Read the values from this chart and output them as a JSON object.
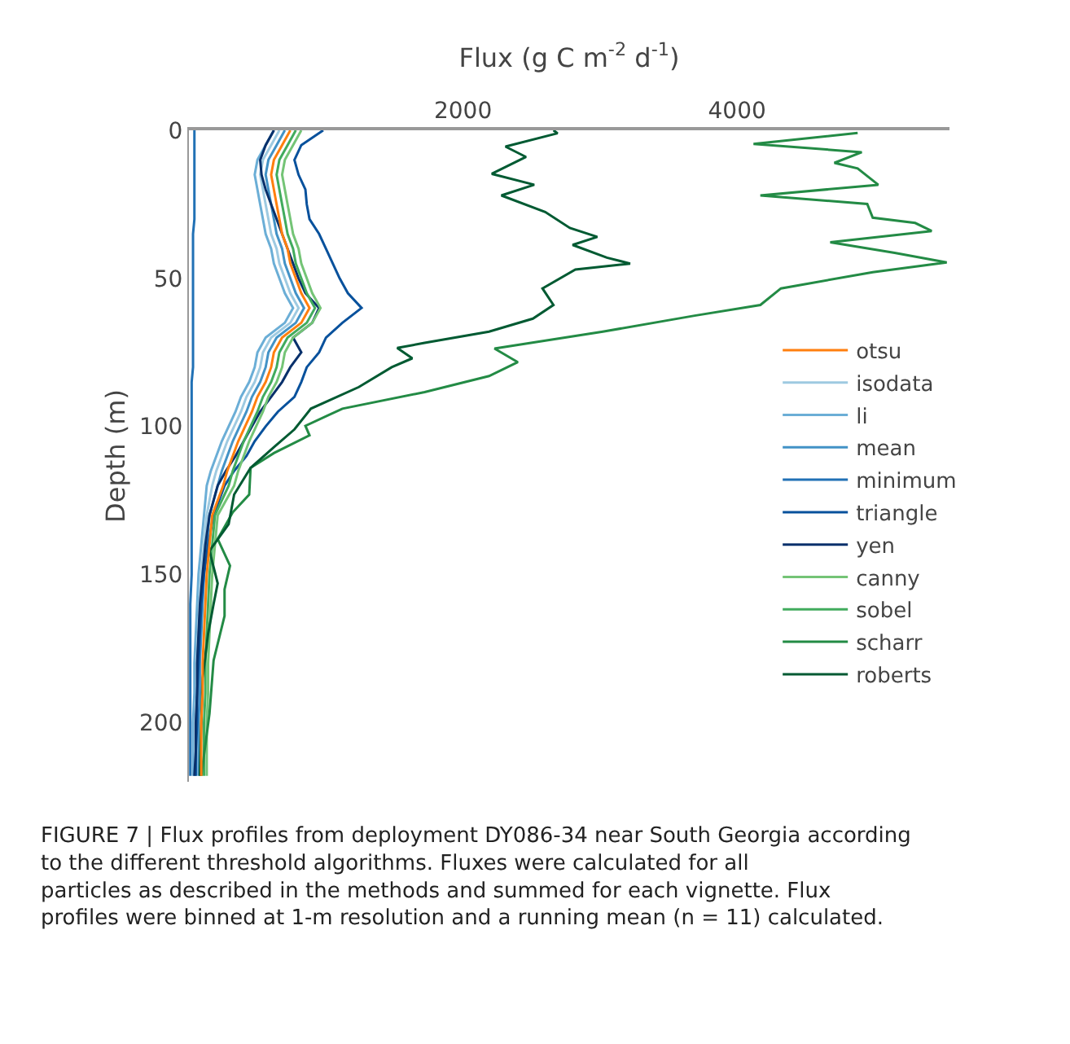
{
  "chart_data": {
    "type": "line",
    "orientation": "horizontal",
    "xlabel": "Flux (g C m$^{-2}$ d$^{-1}$)",
    "ylabel": "Depth (m)",
    "xlim": [
      0,
      5550
    ],
    "xticks": [
      2000,
      4000
    ],
    "ylim": [
      220,
      0
    ],
    "yticks": [
      0,
      50,
      100,
      150,
      200
    ],
    "legend": "right",
    "marker": "none",
    "line_style": "solid",
    "x": [
      0,
      5,
      10,
      15,
      20,
      25,
      30,
      35,
      40,
      45,
      50,
      55,
      60,
      65,
      70,
      75,
      80,
      85,
      90,
      95,
      100,
      105,
      110,
      115,
      120,
      130,
      140,
      150,
      160,
      170,
      180,
      190,
      200,
      210,
      218
    ],
    "series": [
      {
        "name": "otsu",
        "color": "#ff7f0e",
        "values": [
          740,
          680,
          620,
          600,
          620,
          640,
          660,
          680,
          720,
          740,
          780,
          820,
          880,
          820,
          680,
          620,
          600,
          560,
          500,
          460,
          410,
          360,
          320,
          280,
          250,
          170,
          150,
          130,
          120,
          110,
          100,
          100,
          90,
          90,
          90
        ]
      },
      {
        "name": "isodata",
        "color": "#9ecae1",
        "values": [
          660,
          600,
          540,
          520,
          540,
          560,
          580,
          600,
          640,
          660,
          700,
          740,
          800,
          740,
          600,
          540,
          520,
          480,
          420,
          380,
          330,
          280,
          240,
          200,
          170,
          130,
          110,
          90,
          80,
          70,
          60,
          60,
          50,
          50,
          50
        ]
      },
      {
        "name": "li",
        "color": "#6baed6",
        "values": [
          620,
          560,
          500,
          480,
          500,
          520,
          540,
          560,
          600,
          620,
          660,
          700,
          760,
          700,
          560,
          500,
          480,
          440,
          380,
          340,
          290,
          240,
          200,
          160,
          130,
          110,
          90,
          70,
          60,
          50,
          40,
          40,
          30,
          30,
          30
        ]
      },
      {
        "name": "mean",
        "color": "#4292c6",
        "values": [
          700,
          640,
          580,
          560,
          580,
          600,
          620,
          640,
          680,
          700,
          740,
          780,
          840,
          780,
          640,
          580,
          560,
          520,
          460,
          420,
          370,
          320,
          280,
          240,
          210,
          150,
          130,
          110,
          100,
          90,
          80,
          80,
          70,
          70,
          70
        ]
      },
      {
        "name": "minimum",
        "color": "#2171b5",
        "values": [
          40,
          40,
          40,
          40,
          40,
          40,
          40,
          30,
          30,
          30,
          30,
          30,
          30,
          30,
          30,
          30,
          30,
          20,
          20,
          20,
          20,
          20,
          20,
          20,
          20,
          20,
          20,
          20,
          10,
          10,
          10,
          10,
          10,
          10,
          10
        ]
      },
      {
        "name": "triangle",
        "color": "#08519c",
        "values": [
          980,
          820,
          770,
          800,
          850,
          860,
          880,
          950,
          1000,
          1050,
          1100,
          1160,
          1260,
          1120,
          1000,
          950,
          860,
          820,
          770,
          650,
          560,
          480,
          420,
          330,
          260,
          180,
          140,
          110,
          90,
          80,
          70,
          60,
          60,
          50,
          50
        ]
      },
      {
        "name": "yen",
        "color": "#08306b",
        "values": [
          620,
          560,
          520,
          530,
          560,
          600,
          640,
          680,
          720,
          760,
          800,
          850,
          950,
          900,
          760,
          820,
          740,
          680,
          600,
          520,
          460,
          400,
          340,
          270,
          210,
          150,
          120,
          100,
          80,
          70,
          60,
          60,
          50,
          50,
          40
        ]
      },
      {
        "name": "canny",
        "color": "#74c476",
        "values": [
          820,
          760,
          700,
          680,
          700,
          720,
          740,
          760,
          800,
          820,
          860,
          900,
          960,
          900,
          760,
          700,
          680,
          640,
          580,
          540,
          490,
          440,
          400,
          360,
          330,
          210,
          190,
          170,
          160,
          150,
          140,
          140,
          130,
          130,
          130
        ]
      },
      {
        "name": "sobel",
        "color": "#41ab5d",
        "values": [
          780,
          720,
          660,
          640,
          660,
          680,
          700,
          720,
          760,
          780,
          820,
          860,
          920,
          860,
          720,
          660,
          640,
          600,
          540,
          500,
          450,
          400,
          360,
          320,
          290,
          190,
          170,
          150,
          140,
          130,
          120,
          120,
          110,
          110,
          110
        ]
      },
      {
        "name": "scharr",
        "color": "#238b45",
        "x": [
          0.9,
          4.6,
          7.4,
          11,
          12.9,
          18.4,
          22,
          24.9,
          29.5,
          31.3,
          34,
          37.8,
          41.4,
          44.6,
          47.9,
          53.4,
          59,
          62.6,
          68,
          73.7,
          78.3,
          83,
          88.4,
          94,
          99.8,
          103,
          109,
          114,
          123,
          129,
          138,
          147,
          155,
          164,
          179,
          197,
          218
        ],
        "values": [
          4880,
          4120,
          4910,
          4710,
          4880,
          5030,
          4170,
          4950,
          4990,
          5300,
          5420,
          4680,
          5150,
          5530,
          4990,
          4320,
          4170,
          3690,
          3020,
          2230,
          2400,
          2190,
          1720,
          1120,
          850,
          880,
          620,
          450,
          440,
          320,
          210,
          300,
          260,
          260,
          180,
          150,
          90
        ]
      },
      {
        "name": "roberts",
        "color": "#005a32",
        "x": [
          0,
          1,
          5.5,
          9,
          14.7,
          18.4,
          22,
          27.6,
          33,
          36,
          38.7,
          43,
          45,
          47,
          53.4,
          59,
          63.6,
          68,
          71.8,
          73.5,
          77,
          80,
          86.7,
          94,
          101,
          107,
          114,
          123,
          133,
          142,
          153,
          160,
          170,
          185,
          200,
          218
        ],
        "values": [
          2660,
          2690,
          2310,
          2460,
          2210,
          2520,
          2280,
          2600,
          2780,
          2980,
          2800,
          3050,
          3220,
          2820,
          2580,
          2660,
          2510,
          2190,
          1720,
          1520,
          1630,
          1480,
          1240,
          890,
          770,
          620,
          450,
          330,
          290,
          150,
          210,
          180,
          140,
          100,
          90,
          80
        ]
      }
    ],
    "annotations": [
      "FIGURE 7 | Flux profiles from deployment DY086-34 near South Georgia according to the different threshold algorithms. Fluxes were calculated for all particles as described in the methods and summed for each vignette. Flux profiles were binned at 1-m resolution and a running mean (n = 11) calculated."
    ]
  }
}
